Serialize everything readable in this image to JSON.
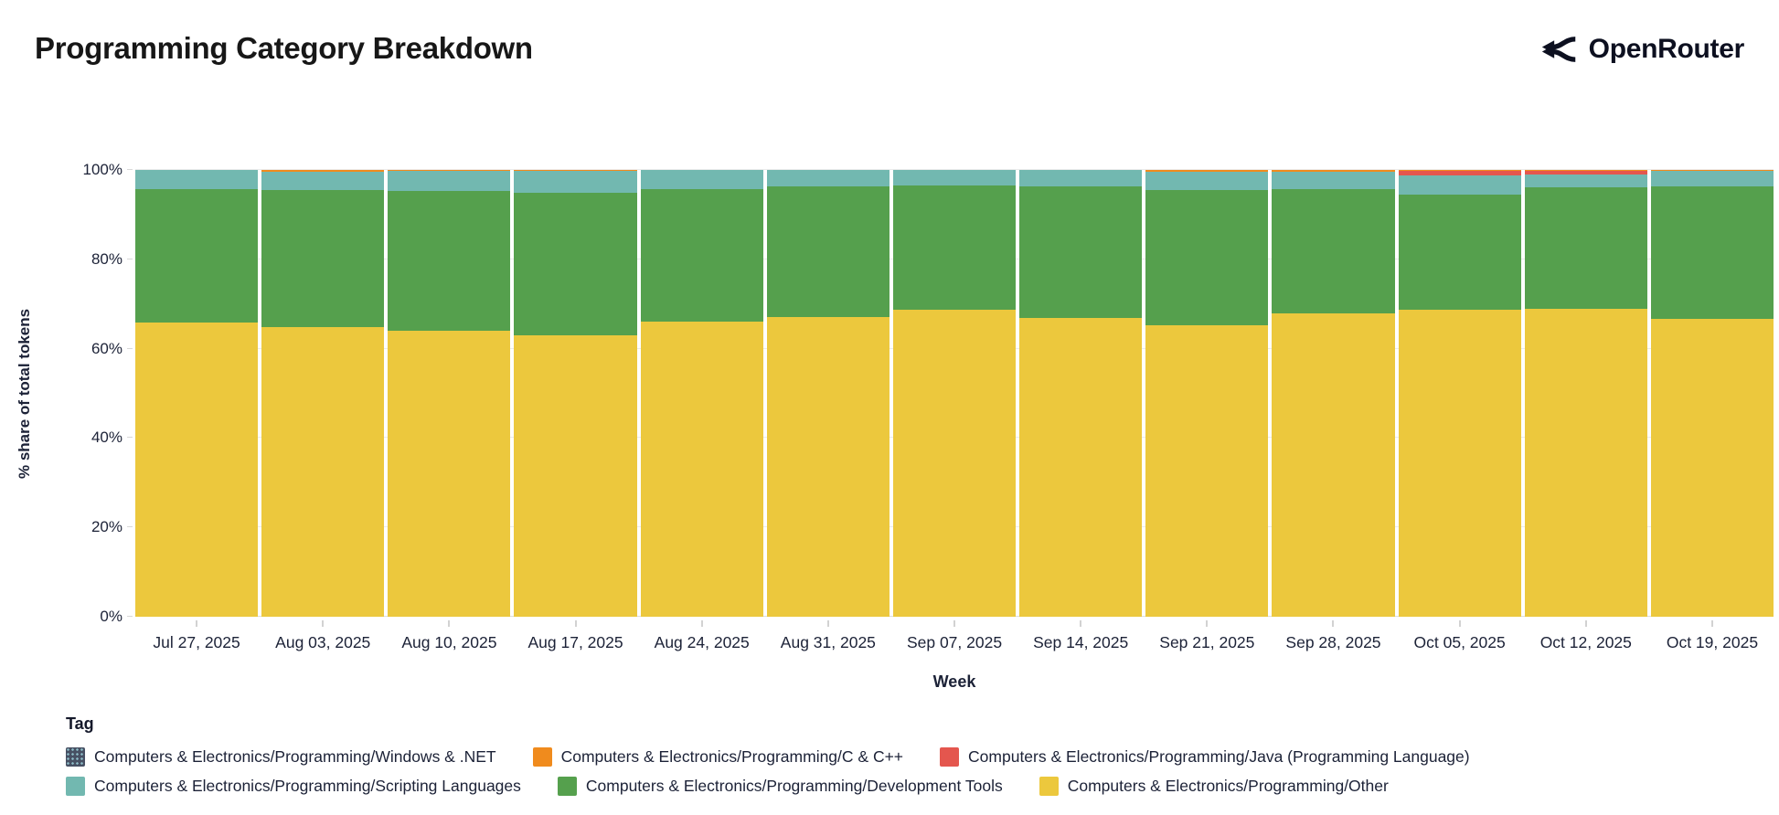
{
  "header": {
    "title": "Programming Category Breakdown",
    "brand": "OpenRouter"
  },
  "chart": {
    "y_axis_title": "% share of total tokens",
    "x_axis_title": "Week",
    "y_ticks": [
      {
        "value": 0,
        "label": "0%"
      },
      {
        "value": 20,
        "label": "20%"
      },
      {
        "value": 40,
        "label": "40%"
      },
      {
        "value": 60,
        "label": "60%"
      },
      {
        "value": 80,
        "label": "80%"
      },
      {
        "value": 100,
        "label": "100%"
      }
    ]
  },
  "chart_data": {
    "type": "bar",
    "stacked": true,
    "title": "Programming Category Breakdown",
    "xlabel": "Week",
    "ylabel": "% share of total tokens",
    "ylim": [
      0,
      100
    ],
    "grid": true,
    "legend_position": "bottom",
    "categories": [
      "Jul 27, 2025",
      "Aug 03, 2025",
      "Aug 10, 2025",
      "Aug 17, 2025",
      "Aug 24, 2025",
      "Aug 31, 2025",
      "Sep 07, 2025",
      "Sep 14, 2025",
      "Sep 21, 2025",
      "Sep 28, 2025",
      "Oct 05, 2025",
      "Oct 12, 2025",
      "Oct 19, 2025"
    ],
    "series": [
      {
        "name": "Computers & Electronics/Programming/Other",
        "color": "#ecc83d",
        "values": [
          65.8,
          64.8,
          64.0,
          63.0,
          66.0,
          67.1,
          68.7,
          66.9,
          65.2,
          67.9,
          68.7,
          68.9,
          66.7
        ]
      },
      {
        "name": "Computers & Electronics/Programming/Development Tools",
        "color": "#55a04d",
        "values": [
          29.9,
          30.7,
          31.3,
          31.9,
          29.7,
          29.2,
          27.8,
          29.4,
          30.3,
          27.8,
          25.8,
          27.2,
          29.6
        ]
      },
      {
        "name": "Computers & Electronics/Programming/Scripting Languages",
        "color": "#72b8b0",
        "values": [
          4.3,
          4.2,
          4.4,
          4.8,
          4.3,
          3.7,
          3.5,
          3.7,
          4.2,
          4.0,
          4.2,
          2.9,
          3.4
        ]
      },
      {
        "name": "Computers & Electronics/Programming/Java (Programming Language)",
        "color": "#e4564e",
        "values": [
          0,
          0,
          0,
          0,
          0,
          0,
          0,
          0,
          0,
          0,
          1.1,
          0.8,
          0
        ]
      },
      {
        "name": "Computers & Electronics/Programming/C & C++",
        "color": "#f08b1d",
        "values": [
          0,
          0.3,
          0.3,
          0.3,
          0,
          0,
          0,
          0,
          0.3,
          0.3,
          0.2,
          0.2,
          0.3
        ]
      },
      {
        "name": "Computers & Electronics/Programming/Windows & .NET",
        "color": "#475063",
        "values": [
          0,
          0,
          0,
          0,
          0,
          0,
          0,
          0,
          0,
          0,
          0,
          0,
          0
        ]
      }
    ]
  },
  "legend": {
    "title": "Tag",
    "rows": [
      [
        {
          "label": "Computers & Electronics/Programming/Windows & .NET",
          "color": "#475063",
          "pattern": "dots"
        },
        {
          "label": "Computers & Electronics/Programming/C & C++",
          "color": "#f08b1d"
        },
        {
          "label": "Computers & Electronics/Programming/Java (Programming Language)",
          "color": "#e4564e"
        }
      ],
      [
        {
          "label": "Computers & Electronics/Programming/Scripting Languages",
          "color": "#72b8b0"
        },
        {
          "label": "Computers & Electronics/Programming/Development Tools",
          "color": "#55a04d"
        },
        {
          "label": "Computers & Electronics/Programming/Other",
          "color": "#ecc83d"
        }
      ]
    ]
  }
}
